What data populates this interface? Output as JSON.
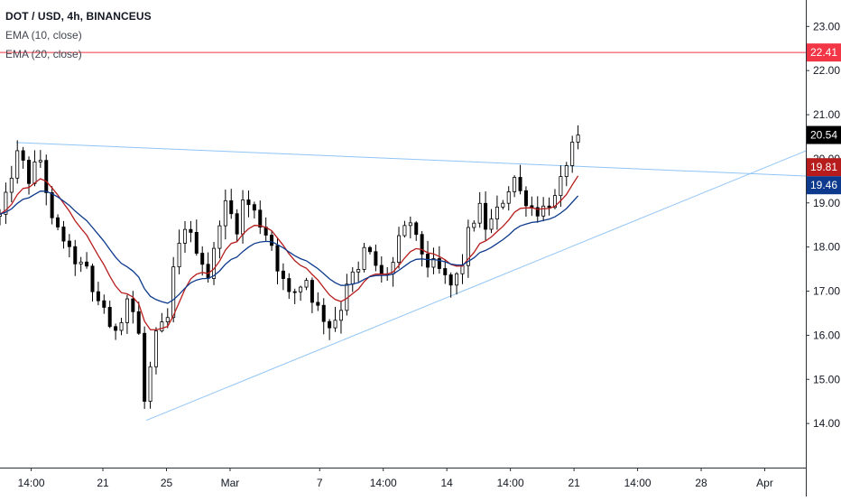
{
  "chart_data": {
    "type": "candlestick",
    "symbol_title": "DOT / USD, 4h, BINANCEUS",
    "indicators": [
      {
        "name": "EMA (10, close)",
        "color": "#b71c1c"
      },
      {
        "name": "EMA (20, close)",
        "color": "#0d3a8c"
      }
    ],
    "y_axis": {
      "ticks": [
        "14.00",
        "15.00",
        "16.00",
        "17.00",
        "18.00",
        "19.00",
        "20.00",
        "21.00",
        "22.00",
        "23.00"
      ],
      "ylim": [
        13.0,
        23.6
      ],
      "position": "right"
    },
    "x_axis": {
      "ticks": [
        {
          "label": "14:00",
          "t": 0.6
        },
        {
          "label": "21",
          "t": 13.0
        },
        {
          "label": "25",
          "t": 24.0
        },
        {
          "label": "Mar",
          "t": 35.0
        },
        {
          "label": "7",
          "t": 50.5
        },
        {
          "label": "14:00",
          "t": 61.5
        },
        {
          "label": "14",
          "t": 72.5
        },
        {
          "label": "14:00",
          "t": 83.5
        },
        {
          "label": "21",
          "t": 94.5
        },
        {
          "label": "14:00",
          "t": 105.5
        },
        {
          "label": "28",
          "t": 116.5
        },
        {
          "label": "Apr",
          "t": 127.5
        }
      ],
      "xlim": [
        -4.8,
        134.6
      ]
    },
    "price_levels": [
      {
        "value": 22.41,
        "label": "22.41",
        "color": "#f23645",
        "style": "horizontal-line"
      },
      {
        "value": 20.54,
        "label": "20.54",
        "color": "#000000",
        "style": "last-price"
      },
      {
        "value": 19.81,
        "label": "19.81",
        "color": "#b71c1c",
        "style": "ema-10-value"
      },
      {
        "value": 19.46,
        "label": "19.46",
        "color": "#0d3a8c",
        "style": "ema-20-value"
      }
    ],
    "trendlines": [
      {
        "from": {
          "t": -2.0,
          "price": 20.37
        },
        "to": {
          "t": 134.6,
          "price": 19.61
        },
        "color": "#90c4f5"
      },
      {
        "from": {
          "t": 20.5,
          "price": 14.07
        },
        "to": {
          "t": 134.6,
          "price": 20.18
        },
        "color": "#90c4f5"
      }
    ],
    "close_anchors": [
      [
        -4.8,
        18.7
      ],
      [
        -2.5,
        19.7
      ],
      [
        -1.5,
        20.2
      ],
      [
        0,
        19.5
      ],
      [
        2,
        20.0
      ],
      [
        4.5,
        18.5
      ],
      [
        6,
        18.2
      ],
      [
        8,
        17.7
      ],
      [
        10,
        17.5
      ],
      [
        11.5,
        16.9
      ],
      [
        13,
        16.7
      ],
      [
        14.5,
        16.0
      ],
      [
        16,
        16.4
      ],
      [
        17.5,
        16.9
      ],
      [
        19,
        16.1
      ],
      [
        20.5,
        14.3
      ],
      [
        21.5,
        15.5
      ],
      [
        22.5,
        16.1
      ],
      [
        24,
        16.3
      ],
      [
        25.5,
        17.6
      ],
      [
        27,
        18.5
      ],
      [
        28.5,
        18.2
      ],
      [
        30,
        17.7
      ],
      [
        31.5,
        17.3
      ],
      [
        33,
        18.6
      ],
      [
        34.5,
        19.0
      ],
      [
        36,
        18.4
      ],
      [
        37.5,
        19.1
      ],
      [
        39,
        18.8
      ],
      [
        40.5,
        18.5
      ],
      [
        42,
        18.1
      ],
      [
        43.5,
        17.5
      ],
      [
        45,
        16.9
      ],
      [
        46.5,
        17.0
      ],
      [
        48,
        17.3
      ],
      [
        49.5,
        16.8
      ],
      [
        51,
        16.4
      ],
      [
        52.5,
        16.2
      ],
      [
        54,
        16.6
      ],
      [
        55.5,
        17.3
      ],
      [
        57,
        17.4
      ],
      [
        58.5,
        18.0
      ],
      [
        60,
        17.6
      ],
      [
        61.5,
        17.3
      ],
      [
        63,
        17.6
      ],
      [
        64.5,
        18.2
      ],
      [
        66,
        18.6
      ],
      [
        67.5,
        18.1
      ],
      [
        69,
        17.6
      ],
      [
        70.5,
        17.6
      ],
      [
        72,
        17.3
      ],
      [
        73.5,
        17.1
      ],
      [
        75,
        17.6
      ],
      [
        76.5,
        18.4
      ],
      [
        78,
        18.9
      ],
      [
        79.5,
        18.4
      ],
      [
        81,
        18.8
      ],
      [
        82.5,
        19.1
      ],
      [
        84,
        19.6
      ],
      [
        85.5,
        19.2
      ],
      [
        87,
        18.9
      ],
      [
        88.5,
        18.8
      ],
      [
        90,
        19.0
      ],
      [
        91.5,
        19.1
      ],
      [
        93,
        19.9
      ],
      [
        94.5,
        20.3
      ],
      [
        95.5,
        20.6
      ]
    ]
  }
}
